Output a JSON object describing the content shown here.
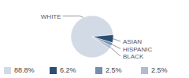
{
  "chart_data": {
    "type": "pie",
    "categories": [
      "WHITE",
      "ASIAN",
      "HISPANIC",
      "BLACK"
    ],
    "values": [
      88.8,
      6.2,
      2.5,
      2.5
    ],
    "value_labels": [
      "88.8%",
      "6.2%",
      "2.5%",
      "2.5%"
    ],
    "colors": [
      "#d2dae5",
      "#2d4e73",
      "#7590ad",
      "#aebdcf"
    ],
    "legend": "bottom"
  }
}
